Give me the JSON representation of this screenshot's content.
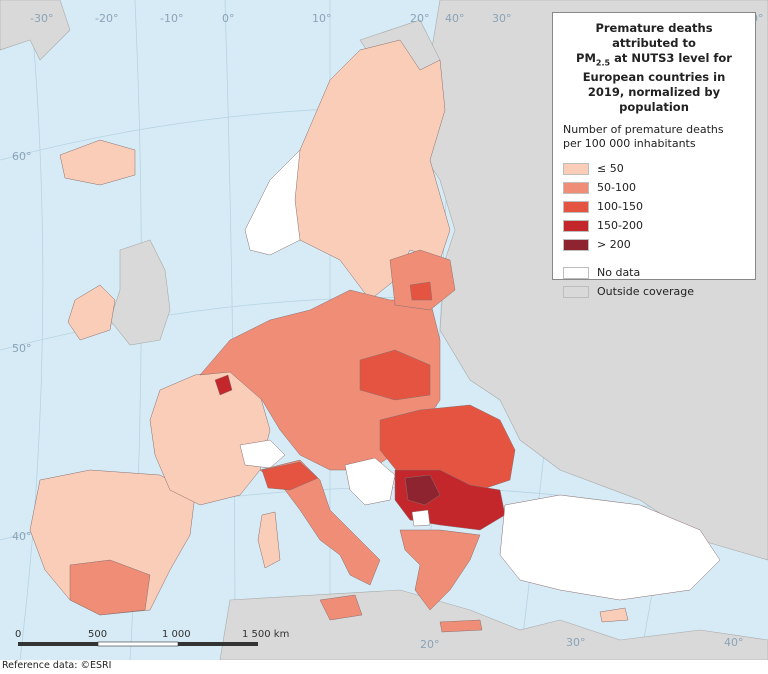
{
  "legend": {
    "title_a": "Premature deaths attributed to",
    "title_pm": "PM",
    "title_sub": "2.5",
    "title_b": " at NUTS3 level for European countries in 2019, normalized by population",
    "subtitle": "Number of premature deaths per 100 000 inhabitants",
    "classes": [
      {
        "label": "≤ 50",
        "color": "#f9cdb7"
      },
      {
        "label": "50-100",
        "color": "#ef8d77"
      },
      {
        "label": "100-150",
        "color": "#e55441"
      },
      {
        "label": "150-200",
        "color": "#c3272b"
      },
      {
        "label": "> 200",
        "color": "#8e2430"
      }
    ],
    "extras": [
      {
        "label": "No data",
        "color": "#ffffff"
      },
      {
        "label": "Outside coverage",
        "color": "#d9d9d9"
      }
    ]
  },
  "graticule": {
    "lon_labels": [
      "-30°",
      "-20°",
      "-10°",
      "0°",
      "10°",
      "20°",
      "30°",
      "40°",
      "40°",
      "20°",
      "30°",
      "40°"
    ],
    "lat_labels": [
      "60°",
      "50°",
      "40°"
    ]
  },
  "scale_bar": {
    "ticks": [
      "0",
      "500",
      "1 000",
      "1 500 km"
    ]
  },
  "credit": "Reference data: ©ESRI",
  "colors": {
    "sea": "#d6ebf5",
    "outside": "#d9d9d9",
    "border": "#8a6e6e"
  }
}
